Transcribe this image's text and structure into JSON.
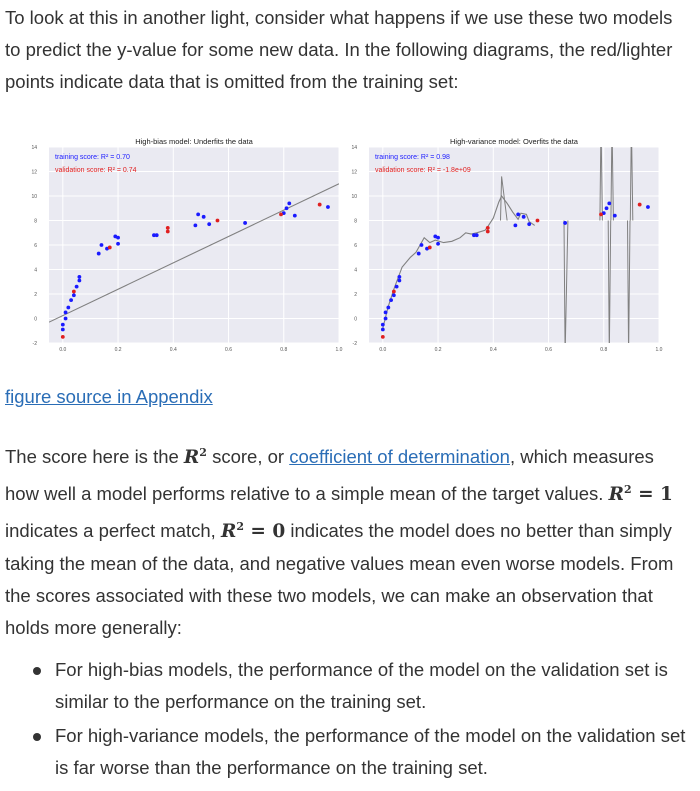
{
  "intro": {
    "text": "To look at this in another light, consider what happens if we use these two models to predict the y-value for some new data. In the following diagrams, the red/lighter points indicate data that is omitted from the training set:"
  },
  "chart_data": [
    {
      "type": "scatter",
      "title": "High-bias model: Underfits the data",
      "annotations": [
        "training score: R² = 0.70",
        "validation score: R² = 0.74"
      ],
      "xlim": [
        -0.05,
        1.0
      ],
      "ylim": [
        -2,
        14
      ],
      "xticks": [
        "0.0",
        "0.2",
        "0.4",
        "0.6",
        "0.8",
        "1.0"
      ],
      "yticks": [
        "-2",
        "0",
        "2",
        "4",
        "6",
        "8",
        "10",
        "12",
        "14"
      ],
      "grid": true,
      "colors": {
        "training": "#1a1aff",
        "validation": "#e02020",
        "fit": "#808080",
        "background": "#eaeaf2"
      },
      "fit_line": {
        "x": [
          -0.05,
          1.0
        ],
        "y": [
          -0.3,
          11.0
        ]
      },
      "series": [
        {
          "points": [
            [
              0.0,
              -0.9
            ],
            [
              0.0,
              -0.5
            ],
            [
              0.01,
              0.0
            ],
            [
              0.01,
              0.5
            ],
            [
              0.02,
              0.9
            ],
            [
              0.03,
              1.5
            ],
            [
              0.04,
              1.9
            ],
            [
              0.05,
              2.6
            ],
            [
              0.06,
              3.1
            ],
            [
              0.06,
              3.4
            ],
            [
              0.13,
              5.3
            ],
            [
              0.14,
              6.0
            ],
            [
              0.16,
              5.7
            ],
            [
              0.19,
              6.7
            ],
            [
              0.2,
              6.1
            ],
            [
              0.2,
              6.6
            ],
            [
              0.33,
              6.8
            ],
            [
              0.34,
              6.8
            ],
            [
              0.48,
              7.6
            ],
            [
              0.49,
              8.5
            ],
            [
              0.51,
              8.3
            ],
            [
              0.53,
              7.7
            ],
            [
              0.66,
              7.8
            ],
            [
              0.8,
              8.6
            ],
            [
              0.81,
              9.0
            ],
            [
              0.82,
              9.4
            ],
            [
              0.84,
              8.4
            ],
            [
              0.96,
              9.1
            ]
          ]
        },
        {
          "points": [
            [
              0.0,
              -1.5
            ],
            [
              0.04,
              2.2
            ],
            [
              0.17,
              5.8
            ],
            [
              0.38,
              7.1
            ],
            [
              0.38,
              7.4
            ],
            [
              0.56,
              8.0
            ],
            [
              0.79,
              8.5
            ],
            [
              0.93,
              9.3
            ]
          ]
        }
      ]
    },
    {
      "type": "scatter",
      "title": "High-variance model: Overfits the data",
      "annotations": [
        "training score: R² = 0.98",
        "validation score: R² = -1.8e+09"
      ],
      "xlim": [
        -0.05,
        1.0
      ],
      "ylim": [
        -2,
        14
      ],
      "xticks": [
        "0.0",
        "0.2",
        "0.4",
        "0.6",
        "0.8",
        "1.0"
      ],
      "yticks": [
        "-2",
        "0",
        "2",
        "4",
        "6",
        "8",
        "10",
        "12",
        "14"
      ],
      "grid": true,
      "colors": {
        "training": "#1a1aff",
        "validation": "#e02020",
        "fit": "#808080",
        "background": "#eaeaf2"
      },
      "series": [
        {
          "points": [
            [
              0.0,
              -0.9
            ],
            [
              0.0,
              -0.5
            ],
            [
              0.01,
              0.0
            ],
            [
              0.01,
              0.5
            ],
            [
              0.02,
              0.9
            ],
            [
              0.03,
              1.5
            ],
            [
              0.04,
              1.9
            ],
            [
              0.05,
              2.6
            ],
            [
              0.06,
              3.1
            ],
            [
              0.06,
              3.4
            ],
            [
              0.13,
              5.3
            ],
            [
              0.14,
              6.0
            ],
            [
              0.16,
              5.7
            ],
            [
              0.19,
              6.7
            ],
            [
              0.2,
              6.1
            ],
            [
              0.2,
              6.6
            ],
            [
              0.33,
              6.8
            ],
            [
              0.34,
              6.8
            ],
            [
              0.48,
              7.6
            ],
            [
              0.49,
              8.5
            ],
            [
              0.51,
              8.3
            ],
            [
              0.53,
              7.7
            ],
            [
              0.66,
              7.8
            ],
            [
              0.8,
              8.6
            ],
            [
              0.81,
              9.0
            ],
            [
              0.82,
              9.4
            ],
            [
              0.84,
              8.4
            ],
            [
              0.96,
              9.1
            ]
          ]
        },
        {
          "points": [
            [
              0.0,
              -1.5
            ],
            [
              0.04,
              2.2
            ],
            [
              0.17,
              5.8
            ],
            [
              0.38,
              7.1
            ],
            [
              0.38,
              7.4
            ],
            [
              0.56,
              8.0
            ],
            [
              0.79,
              8.5
            ],
            [
              0.93,
              9.3
            ]
          ]
        }
      ]
    }
  ],
  "figure_link": {
    "text": "figure source in Appendix"
  },
  "score_para": {
    "t1": "The score here is the ",
    "m1": "R",
    "m1_sup": "2",
    "t2": " score, or ",
    "link": "coefficient of determination",
    "t3": ", which measures how well a model performs relative to a simple mean of the target values. ",
    "m2": "R",
    "m2_sup": "2",
    "m2_eq": " = 1",
    "t4": " indicates a perfect match, ",
    "m3": "R",
    "m3_sup": "2",
    "m3_eq": " = 0",
    "t5": " indicates the model does no better than simply taking the mean of the data, and negative values mean even worse models. From the scores associated with these two models, we can make an observation that holds more generally:"
  },
  "bullets": [
    "For high-bias models, the performance of the model on the validation set is similar to the performance on the training set.",
    "For high-variance models, the performance of the model on the validation set is far worse than the performance on the training set."
  ]
}
